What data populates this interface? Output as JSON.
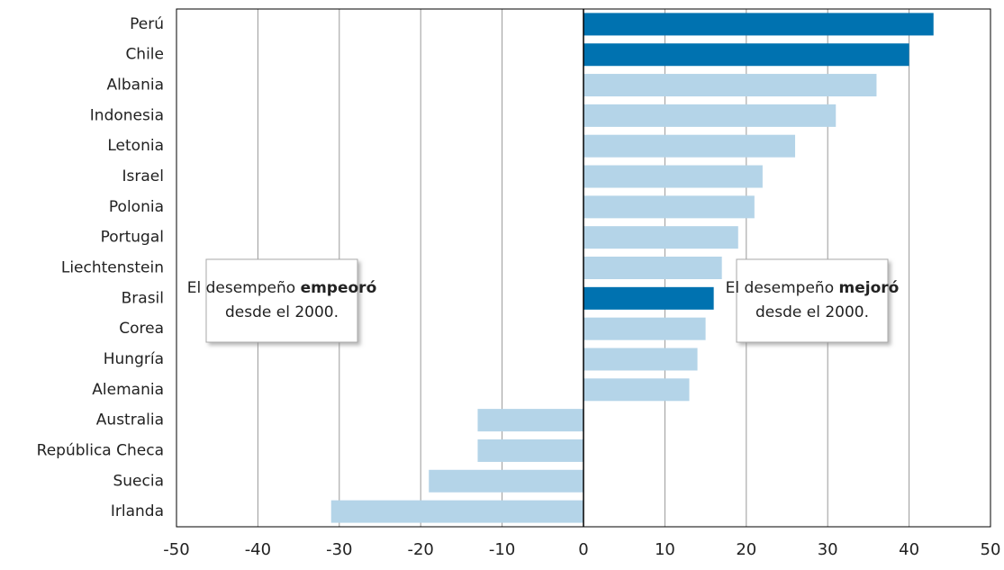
{
  "chart_data": {
    "type": "bar",
    "orientation": "horizontal",
    "categories": [
      "Perú",
      "Chile",
      "Albania",
      "Indonesia",
      "Letonia",
      "Israel",
      "Polonia",
      "Portugal",
      "Liechtenstein",
      "Brasil",
      "Corea",
      "Hungría",
      "Alemania",
      "Australia",
      "República Checa",
      "Suecia",
      "Irlanda"
    ],
    "values": [
      43,
      40,
      36,
      31,
      26,
      22,
      21,
      19,
      17,
      16,
      15,
      14,
      13,
      -13,
      -13,
      -19,
      -31
    ],
    "colors": [
      "#0072b0",
      "#0072b0",
      "#b4d4e8",
      "#b4d4e8",
      "#b4d4e8",
      "#b4d4e8",
      "#b4d4e8",
      "#b4d4e8",
      "#b4d4e8",
      "#0072b0",
      "#b4d4e8",
      "#b4d4e8",
      "#b4d4e8",
      "#b4d4e8",
      "#b4d4e8",
      "#b4d4e8",
      "#b4d4e8"
    ],
    "xlim": [
      -50,
      50
    ],
    "xticks": [
      -50,
      -40,
      -30,
      -20,
      -10,
      0,
      10,
      20,
      30,
      40,
      50
    ],
    "grid": true,
    "annotations": [
      {
        "text": "El desempeño",
        "bold": "empeoró",
        "line2": "desde el 2000."
      },
      {
        "text": "El desempeño",
        "bold": "mejoró",
        "line2": "desde el 2000."
      }
    ]
  }
}
